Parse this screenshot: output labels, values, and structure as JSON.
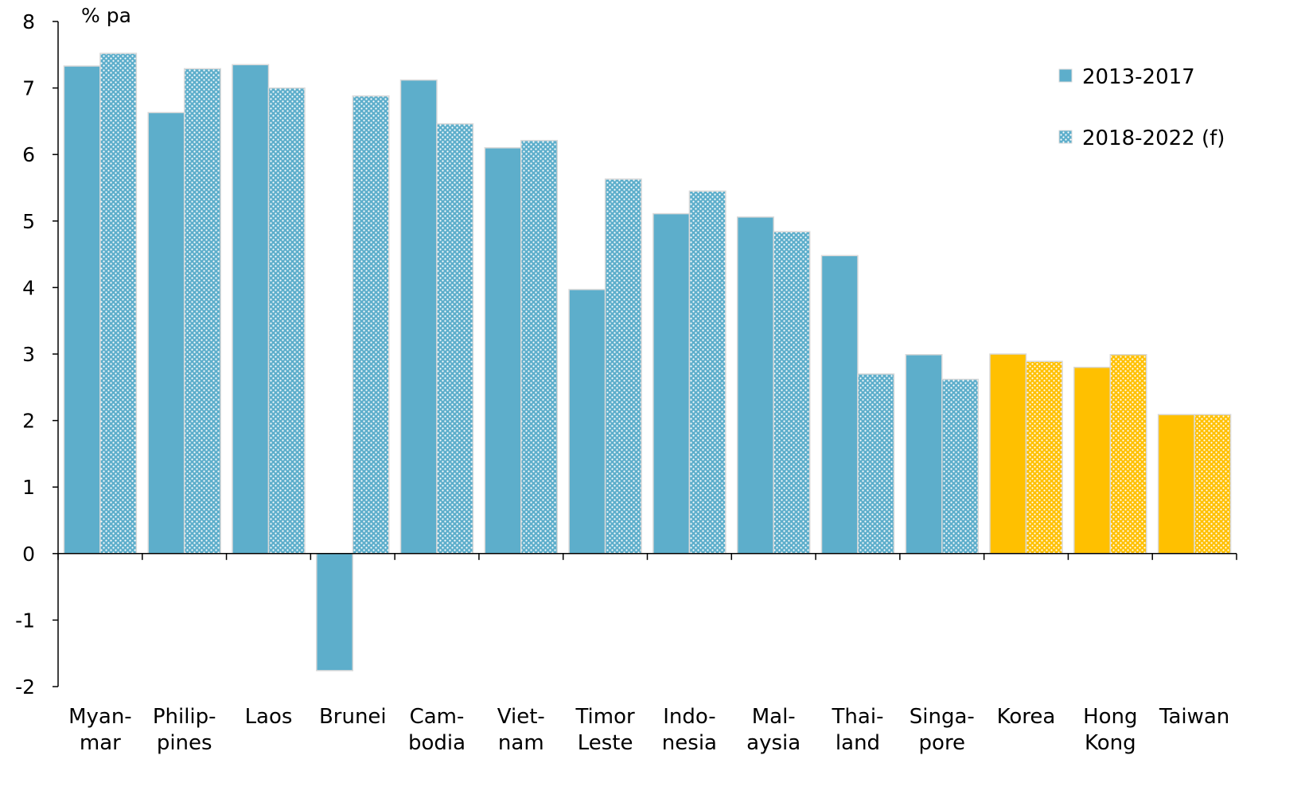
{
  "chart_data": {
    "type": "bar",
    "ylabel": "% pa",
    "ylim": [
      -2,
      8
    ],
    "yticks": [
      "-2",
      "-1",
      "0",
      "1",
      "2",
      "3",
      "4",
      "5",
      "6",
      "7",
      "8"
    ],
    "grid": false,
    "legend_position": "top-right",
    "categories": [
      [
        "Myan-",
        "mar"
      ],
      [
        "Philip-",
        "pines"
      ],
      [
        "Laos"
      ],
      [
        "Brunei"
      ],
      [
        "Cam-",
        "bodia"
      ],
      [
        "Viet-",
        "nam"
      ],
      [
        "Timor",
        "Leste"
      ],
      [
        "Indo-",
        "nesia"
      ],
      [
        "Mal-",
        "aysia"
      ],
      [
        "Thai-",
        "land"
      ],
      [
        "Singa-",
        "pore"
      ],
      [
        "Korea"
      ],
      [
        "Hong",
        "Kong"
      ],
      [
        "Taiwan"
      ]
    ],
    "series": [
      {
        "name": "2013-2017",
        "pattern": "solid",
        "values": [
          7.33,
          6.63,
          7.35,
          -1.76,
          7.12,
          6.1,
          3.97,
          5.11,
          5.06,
          4.48,
          2.99,
          3.0,
          2.8,
          2.09
        ]
      },
      {
        "name": "2018-2022 (f)",
        "pattern": "dotted",
        "values": [
          7.52,
          7.29,
          7.0,
          6.88,
          6.46,
          6.21,
          5.63,
          5.45,
          4.84,
          2.7,
          2.62,
          2.89,
          2.99,
          2.09
        ]
      }
    ],
    "highlight_categories": [
      11,
      12,
      13
    ],
    "colors": {
      "primary": "#5DAECB",
      "highlight": "#FFC000",
      "pattern_dot": "#ffffff",
      "bar_edge": "#D9D9D9",
      "axis": "#000000"
    }
  }
}
